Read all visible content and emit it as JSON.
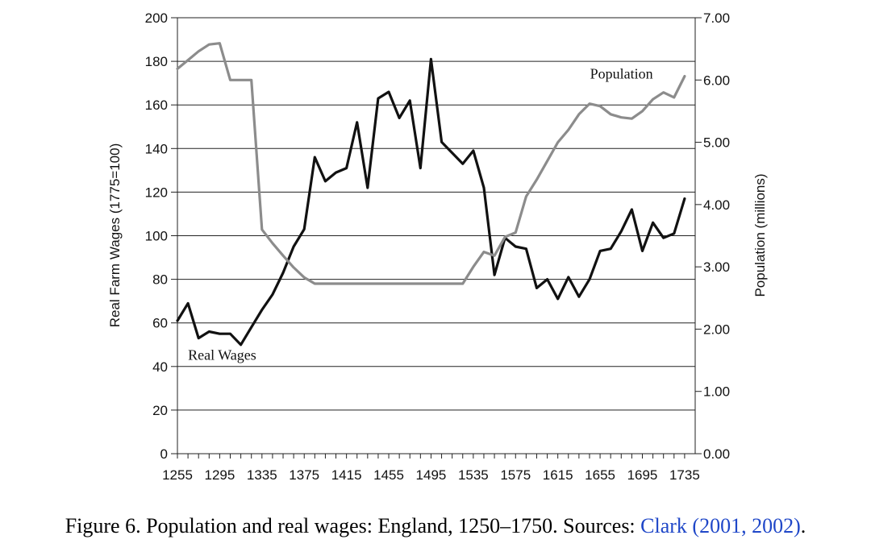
{
  "chart_data": {
    "type": "line",
    "title": "",
    "xlabel": "",
    "ylabel": "Real Farm Wages (1775=100)",
    "y2label": "Population (millions)",
    "xlim": [
      1255,
      1745
    ],
    "ylim": [
      0,
      200
    ],
    "y2lim": [
      0,
      7
    ],
    "x_ticks": [
      "1255",
      "1295",
      "1335",
      "1375",
      "1415",
      "1455",
      "1495",
      "1535",
      "1575",
      "1615",
      "1655",
      "1695",
      "1735"
    ],
    "x_tick_values": [
      1255,
      1265,
      1275,
      1285,
      1295,
      1305,
      1315,
      1325,
      1335,
      1345,
      1355,
      1365,
      1375,
      1385,
      1395,
      1405,
      1415,
      1425,
      1435,
      1445,
      1455,
      1465,
      1475,
      1485,
      1495,
      1505,
      1515,
      1525,
      1535,
      1545,
      1555,
      1565,
      1575,
      1585,
      1595,
      1605,
      1615,
      1625,
      1635,
      1645,
      1655,
      1665,
      1675,
      1685,
      1695,
      1705,
      1715,
      1725,
      1735
    ],
    "y_ticks": [
      "0",
      "20",
      "40",
      "60",
      "80",
      "100",
      "120",
      "140",
      "160",
      "180",
      "200"
    ],
    "y_tick_values": [
      0,
      20,
      40,
      60,
      80,
      100,
      120,
      140,
      160,
      180,
      200
    ],
    "y2_ticks": [
      "0.00",
      "1.00",
      "2.00",
      "3.00",
      "4.00",
      "5.00",
      "6.00",
      "7.00"
    ],
    "y2_tick_values": [
      0,
      1,
      2,
      3,
      4,
      5,
      6,
      7
    ],
    "grid": "horizontal",
    "series": [
      {
        "name": "Real Wages",
        "axis": "left",
        "color": "#111111",
        "x": [
          1255,
          1265,
          1275,
          1285,
          1295,
          1305,
          1315,
          1325,
          1335,
          1345,
          1355,
          1365,
          1375,
          1385,
          1395,
          1405,
          1415,
          1425,
          1435,
          1445,
          1455,
          1465,
          1475,
          1485,
          1495,
          1505,
          1515,
          1525,
          1535,
          1545,
          1555,
          1565,
          1575,
          1585,
          1595,
          1605,
          1615,
          1625,
          1635,
          1645,
          1655,
          1665,
          1675,
          1685,
          1695,
          1705,
          1715,
          1725,
          1735
        ],
        "values": [
          61,
          69,
          53,
          56,
          55,
          55,
          50,
          58,
          66,
          73,
          83,
          95,
          103,
          136,
          125,
          129,
          131,
          152,
          122,
          163,
          166,
          154,
          162,
          131,
          181,
          143,
          138,
          133,
          139,
          122,
          82,
          99,
          95,
          94,
          76,
          80,
          71,
          81,
          72,
          80,
          93,
          94,
          102,
          112,
          93,
          106,
          99,
          101,
          117
        ]
      },
      {
        "name": "Population",
        "axis": "right",
        "color": "#8c8c8c",
        "x": [
          1255,
          1265,
          1275,
          1285,
          1295,
          1305,
          1315,
          1325,
          1335,
          1345,
          1355,
          1365,
          1375,
          1385,
          1395,
          1405,
          1415,
          1425,
          1435,
          1445,
          1455,
          1465,
          1475,
          1485,
          1495,
          1505,
          1515,
          1525,
          1535,
          1545,
          1555,
          1565,
          1575,
          1585,
          1595,
          1605,
          1615,
          1625,
          1635,
          1645,
          1655,
          1665,
          1675,
          1685,
          1695,
          1705,
          1715,
          1725,
          1735
        ],
        "values": [
          6.18,
          6.32,
          6.46,
          6.57,
          6.59,
          6.0,
          6.0,
          6.0,
          3.6,
          3.38,
          3.18,
          2.99,
          2.83,
          2.73,
          2.73,
          2.73,
          2.73,
          2.73,
          2.73,
          2.73,
          2.73,
          2.73,
          2.73,
          2.73,
          2.73,
          2.73,
          2.73,
          2.73,
          3.0,
          3.24,
          3.18,
          3.48,
          3.55,
          4.13,
          4.4,
          4.7,
          5.0,
          5.2,
          5.45,
          5.62,
          5.58,
          5.45,
          5.4,
          5.38,
          5.5,
          5.69,
          5.8,
          5.72,
          6.06
        ]
      }
    ],
    "annotations": [
      {
        "text": "Population",
        "x": 1705,
        "y2": 6.02
      },
      {
        "text": "Real Wages",
        "x": 1265,
        "y": 43
      }
    ]
  },
  "caption": {
    "text": "Figure 6.  Population and real wages: England, 1250–1750. Sources: ",
    "link": "Clark (2001, 2002)",
    "end": "."
  }
}
